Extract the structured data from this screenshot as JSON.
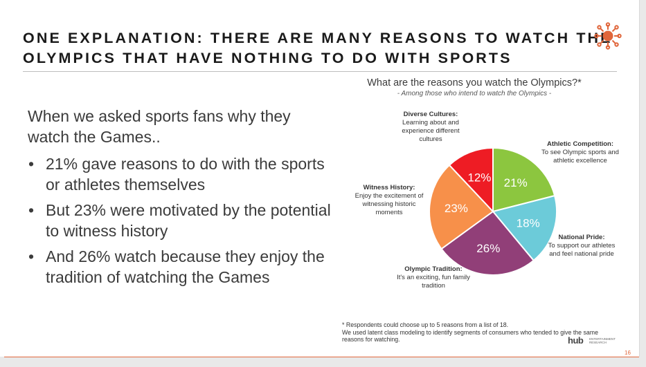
{
  "slide": {
    "title_line1": "ONE EXPLANATION: THERE ARE MANY REASONS TO WATCH THE",
    "title_line2": "OLYMPICS THAT HAVE NOTHING TO DO WITH SPORTS",
    "intro": "When we asked sports fans why they watch the Games..",
    "bullets": [
      "21% gave reasons to do with the sports or athletes themselves",
      "But 23% were motivated by the potential to witness history",
      "And 26% watch because they enjoy the tradition of watching the Games"
    ],
    "bullet_glyph": "•",
    "footnote_line1": "* Respondents could choose up to 5 reasons from a list of 18.",
    "footnote_line2": "We used latent class modeling to identify segments of consumers who tended to give the same reasons for watching.",
    "logo_text": "hub",
    "logo_sub": "ENTERTAINMENT RESEARCH",
    "page_number": "16",
    "brand_icon": "sun-icon",
    "colors": {
      "accent": "#e0663b",
      "title": "#1a1a1a",
      "body": "#3b3b3b"
    }
  },
  "chart_data": {
    "type": "pie",
    "title": "What are the reasons you watch the Olympics?*",
    "subtitle": "- Among those who intend to watch the Olympics -",
    "slices": [
      {
        "label": "Athletic Competition:",
        "description": "To see Olympic sports and athletic excellence",
        "value": 21,
        "value_label": "21%",
        "color": "#8cc63f"
      },
      {
        "label": "National Pride:",
        "description": "To support our athletes and feel national pride",
        "value": 18,
        "value_label": "18%",
        "color": "#6ccbd9"
      },
      {
        "label": "Olympic Tradition:",
        "description": "It's an exciting, fun family tradition",
        "value": 26,
        "value_label": "26%",
        "color": "#913f78"
      },
      {
        "label": "Witness History:",
        "description": "Enjoy the excitement of witnessing historic moments",
        "value": 23,
        "value_label": "23%",
        "color": "#f7904a"
      },
      {
        "label": "Diverse Cultures:",
        "description": "Learning about and experience different cultures",
        "value": 12,
        "value_label": "12%",
        "color": "#ee1c24"
      }
    ]
  }
}
